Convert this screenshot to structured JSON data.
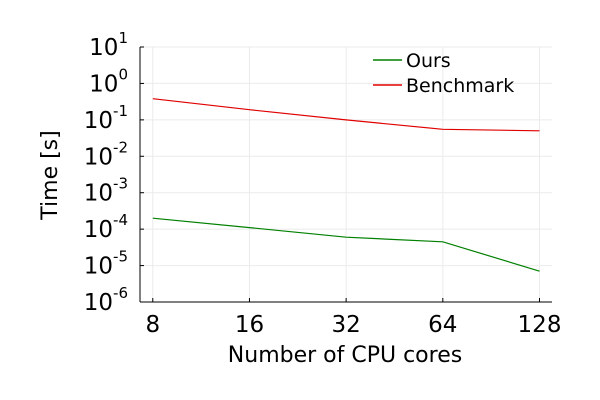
{
  "chart_data": {
    "type": "line",
    "title": "",
    "xlabel": "Number of CPU cores",
    "ylabel": "Time [s]",
    "xscale": "log2",
    "yscale": "log10",
    "x": [
      8,
      16,
      32,
      64,
      128
    ],
    "x_tick_labels": [
      "8",
      "16",
      "32",
      "64",
      "128"
    ],
    "y_ticks": [
      {
        "value": 1e-06,
        "base": "10",
        "exponent": "-6"
      },
      {
        "value": 1e-05,
        "base": "10",
        "exponent": "-5"
      },
      {
        "value": 0.0001,
        "base": "10",
        "exponent": "-4"
      },
      {
        "value": 0.001,
        "base": "10",
        "exponent": "-3"
      },
      {
        "value": 0.01,
        "base": "10",
        "exponent": "-2"
      },
      {
        "value": 0.1,
        "base": "10",
        "exponent": "-1"
      },
      {
        "value": 1,
        "base": "10",
        "exponent": "0"
      },
      {
        "value": 10,
        "base": "10",
        "exponent": "1"
      }
    ],
    "xlim": [
      7.3,
      140
    ],
    "ylim": [
      1e-06,
      10
    ],
    "grid": true,
    "legend_position": "top-right",
    "series": [
      {
        "name": "Ours",
        "color": "#008000",
        "values": [
          0.0002,
          0.00011,
          6e-05,
          4.5e-05,
          7e-06
        ]
      },
      {
        "name": "Benchmark",
        "color": "#e00000",
        "values": [
          0.38,
          0.19,
          0.1,
          0.055,
          0.05
        ]
      }
    ]
  }
}
